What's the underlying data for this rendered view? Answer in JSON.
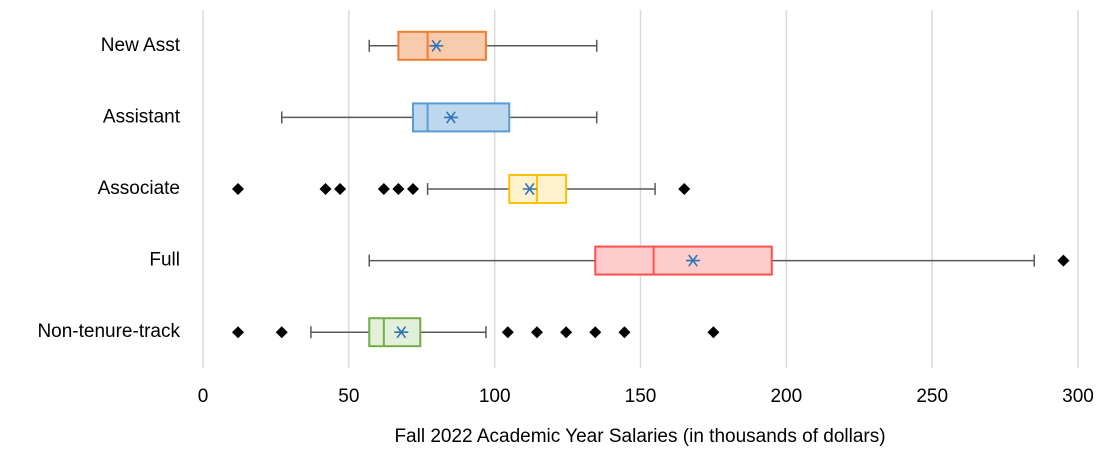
{
  "chart_data": {
    "type": "boxplot",
    "orientation": "horizontal",
    "xlabel": "Fall 2022 Academic Year Salaries (in thousands of dollars)",
    "xlim": [
      0,
      300
    ],
    "xticks": [
      0,
      50,
      100,
      150,
      200,
      250,
      300
    ],
    "grid": true,
    "mean_color": "#2e75b6",
    "outlier_color": "#000000",
    "series": [
      {
        "name": "New Asst",
        "color": "#ed7d31",
        "fill": "#f8cbad",
        "min": 57,
        "q1": 67,
        "median": 77,
        "q3": 97,
        "max": 135,
        "mean": 80,
        "outliers": []
      },
      {
        "name": "Assistant",
        "color": "#5b9bd5",
        "fill": "#bdd7ee",
        "min": 27,
        "q1": 72,
        "median": 77,
        "q3": 105,
        "max": 135,
        "mean": 85,
        "outliers": []
      },
      {
        "name": "Associate",
        "color": "#ffc000",
        "fill": "#fff2cc",
        "min": 77,
        "q1": 105,
        "median": 114.5,
        "q3": 124.5,
        "max": 155,
        "mean": 112,
        "outliers": [
          12,
          42,
          47,
          62,
          67,
          72,
          165
        ]
      },
      {
        "name": "Full",
        "color": "#ff5050",
        "fill": "#ffcccc",
        "min": 57,
        "q1": 134.5,
        "median": 154.5,
        "q3": 195,
        "max": 285,
        "mean": 168,
        "outliers": [
          295
        ]
      },
      {
        "name": "Non-tenure-track",
        "color": "#70ad47",
        "fill": "#e2efda",
        "min": 37,
        "q1": 57,
        "median": 62,
        "q3": 74.5,
        "max": 97,
        "mean": 68,
        "outliers": [
          12,
          27,
          104.5,
          114.5,
          124.5,
          134.5,
          144.5,
          175
        ]
      }
    ]
  }
}
